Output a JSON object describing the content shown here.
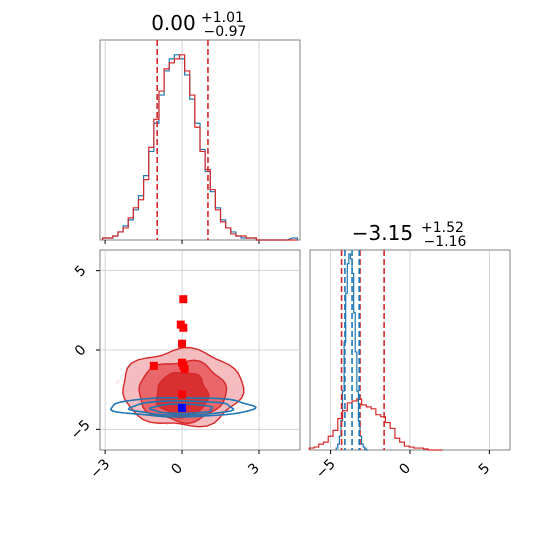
{
  "chart_data": [
    {
      "panel": "marginal-1",
      "type": "histogram",
      "title": {
        "value": "0.00",
        "plus": "+1.01",
        "minus": "−0.97"
      },
      "quantile_lines": [
        -0.97,
        0.0,
        1.01
      ],
      "xlim": [
        -3.2,
        4.6
      ],
      "series": [
        {
          "color": "#1f77b4",
          "x": [
            -3.0,
            -2.8,
            -2.6,
            -2.4,
            -2.2,
            -2.0,
            -1.8,
            -1.6,
            -1.4,
            -1.2,
            -1.0,
            -0.8,
            -0.6,
            -0.4,
            -0.2,
            0.0,
            0.2,
            0.4,
            0.6,
            0.8,
            1.0,
            1.2,
            1.4,
            1.6,
            1.8,
            2.0,
            2.2,
            2.4,
            2.6,
            2.8,
            3.0,
            3.2,
            3.6,
            4.0,
            4.4
          ],
          "counts": [
            1,
            1,
            2,
            4,
            7,
            10,
            15,
            22,
            32,
            44,
            58,
            72,
            84,
            90,
            92,
            90,
            82,
            70,
            58,
            45,
            34,
            24,
            16,
            10,
            6,
            4,
            2,
            1,
            1,
            1,
            0,
            0,
            0,
            0,
            1
          ]
        },
        {
          "color": "#d62728",
          "x": [
            -3.0,
            -2.8,
            -2.6,
            -2.4,
            -2.2,
            -2.0,
            -1.8,
            -1.6,
            -1.4,
            -1.2,
            -1.0,
            -0.8,
            -0.6,
            -0.4,
            -0.2,
            0.0,
            0.2,
            0.4,
            0.6,
            0.8,
            1.0,
            1.2,
            1.4,
            1.6,
            1.8,
            2.0,
            2.2,
            2.4,
            2.6,
            2.8,
            3.0,
            3.2,
            3.6,
            4.0,
            4.4
          ],
          "counts": [
            1,
            1,
            2,
            4,
            6,
            11,
            16,
            20,
            30,
            46,
            60,
            74,
            85,
            88,
            90,
            92,
            84,
            72,
            56,
            44,
            35,
            25,
            15,
            9,
            6,
            3,
            2,
            2,
            1,
            1,
            0,
            0,
            0,
            0,
            0
          ]
        }
      ]
    },
    {
      "panel": "joint",
      "type": "contour-scatter",
      "xlim": [
        -3.2,
        4.6
      ],
      "ylim": [
        -6.3,
        6.3
      ],
      "x_ticks": [
        "−3",
        "0",
        "3"
      ],
      "y_ticks": [
        "−5",
        "0",
        "5"
      ],
      "red_markers": [
        {
          "x": 0.05,
          "y": 3.2
        },
        {
          "x": -0.05,
          "y": 1.6
        },
        {
          "x": 0.05,
          "y": 1.4
        },
        {
          "x": 0.0,
          "y": 0.4
        },
        {
          "x": 0.0,
          "y": -0.8
        },
        {
          "x": 0.05,
          "y": -1.0
        },
        {
          "x": -1.1,
          "y": -1.0
        },
        {
          "x": 0.1,
          "y": -1.2
        },
        {
          "x": 0.0,
          "y": -2.8
        }
      ],
      "blue_markers": [
        {
          "x": 0.0,
          "y": -3.65
        }
      ],
      "red_contours": [
        {
          "cx": 0.0,
          "cy": -2.4,
          "rx": 2.35,
          "ry": 2.4
        },
        {
          "cx": 0.0,
          "cy": -2.6,
          "rx": 1.7,
          "ry": 1.9
        },
        {
          "cx": 0.0,
          "cy": -2.8,
          "rx": 1.0,
          "ry": 1.4
        }
      ],
      "blue_contours": [
        {
          "cx": 0.0,
          "cy": -3.6,
          "rx": 2.8,
          "ry": 0.6
        },
        {
          "cx": 0.0,
          "cy": -3.65,
          "rx": 2.0,
          "ry": 0.45
        },
        {
          "cx": 0.0,
          "cy": -3.7,
          "rx": 1.2,
          "ry": 0.3
        }
      ]
    },
    {
      "panel": "marginal-2",
      "type": "histogram",
      "title": {
        "value": "−3.15",
        "plus": "+1.52",
        "minus": "−1.16"
      },
      "quantile_lines_red": [
        -4.31,
        -3.15,
        -1.63
      ],
      "quantile_lines_blue": [
        -4.1,
        -3.65,
        -3.2
      ],
      "xlim": [
        -6.3,
        6.3
      ],
      "x_ticks": [
        "−5",
        "0",
        "5"
      ],
      "series": [
        {
          "color": "#1f77b4",
          "x": [
            -4.6,
            -4.5,
            -4.4,
            -4.3,
            -4.2,
            -4.1,
            -4.0,
            -3.9,
            -3.8,
            -3.7,
            -3.6,
            -3.5,
            -3.4,
            -3.3,
            -3.2,
            -3.1,
            -3.0,
            -2.9,
            -2.8,
            -2.7
          ],
          "counts": [
            2,
            6,
            14,
            30,
            60,
            110,
            160,
            190,
            200,
            195,
            180,
            140,
            100,
            60,
            30,
            14,
            6,
            3,
            1,
            0
          ]
        },
        {
          "color": "#d62728",
          "x": [
            -6.2,
            -5.9,
            -5.6,
            -5.3,
            -5.0,
            -4.7,
            -4.4,
            -4.1,
            -3.8,
            -3.5,
            -3.2,
            -2.9,
            -2.6,
            -2.3,
            -2.0,
            -1.7,
            -1.4,
            -1.1,
            -0.8,
            -0.5,
            -0.2,
            0.1,
            0.4,
            0.7,
            1.0,
            1.3,
            1.6,
            1.9
          ],
          "counts": [
            2,
            3,
            6,
            8,
            14,
            20,
            32,
            40,
            48,
            50,
            52,
            46,
            44,
            42,
            36,
            34,
            28,
            22,
            12,
            8,
            4,
            3,
            2,
            2,
            1,
            0,
            0,
            0
          ]
        }
      ]
    }
  ]
}
